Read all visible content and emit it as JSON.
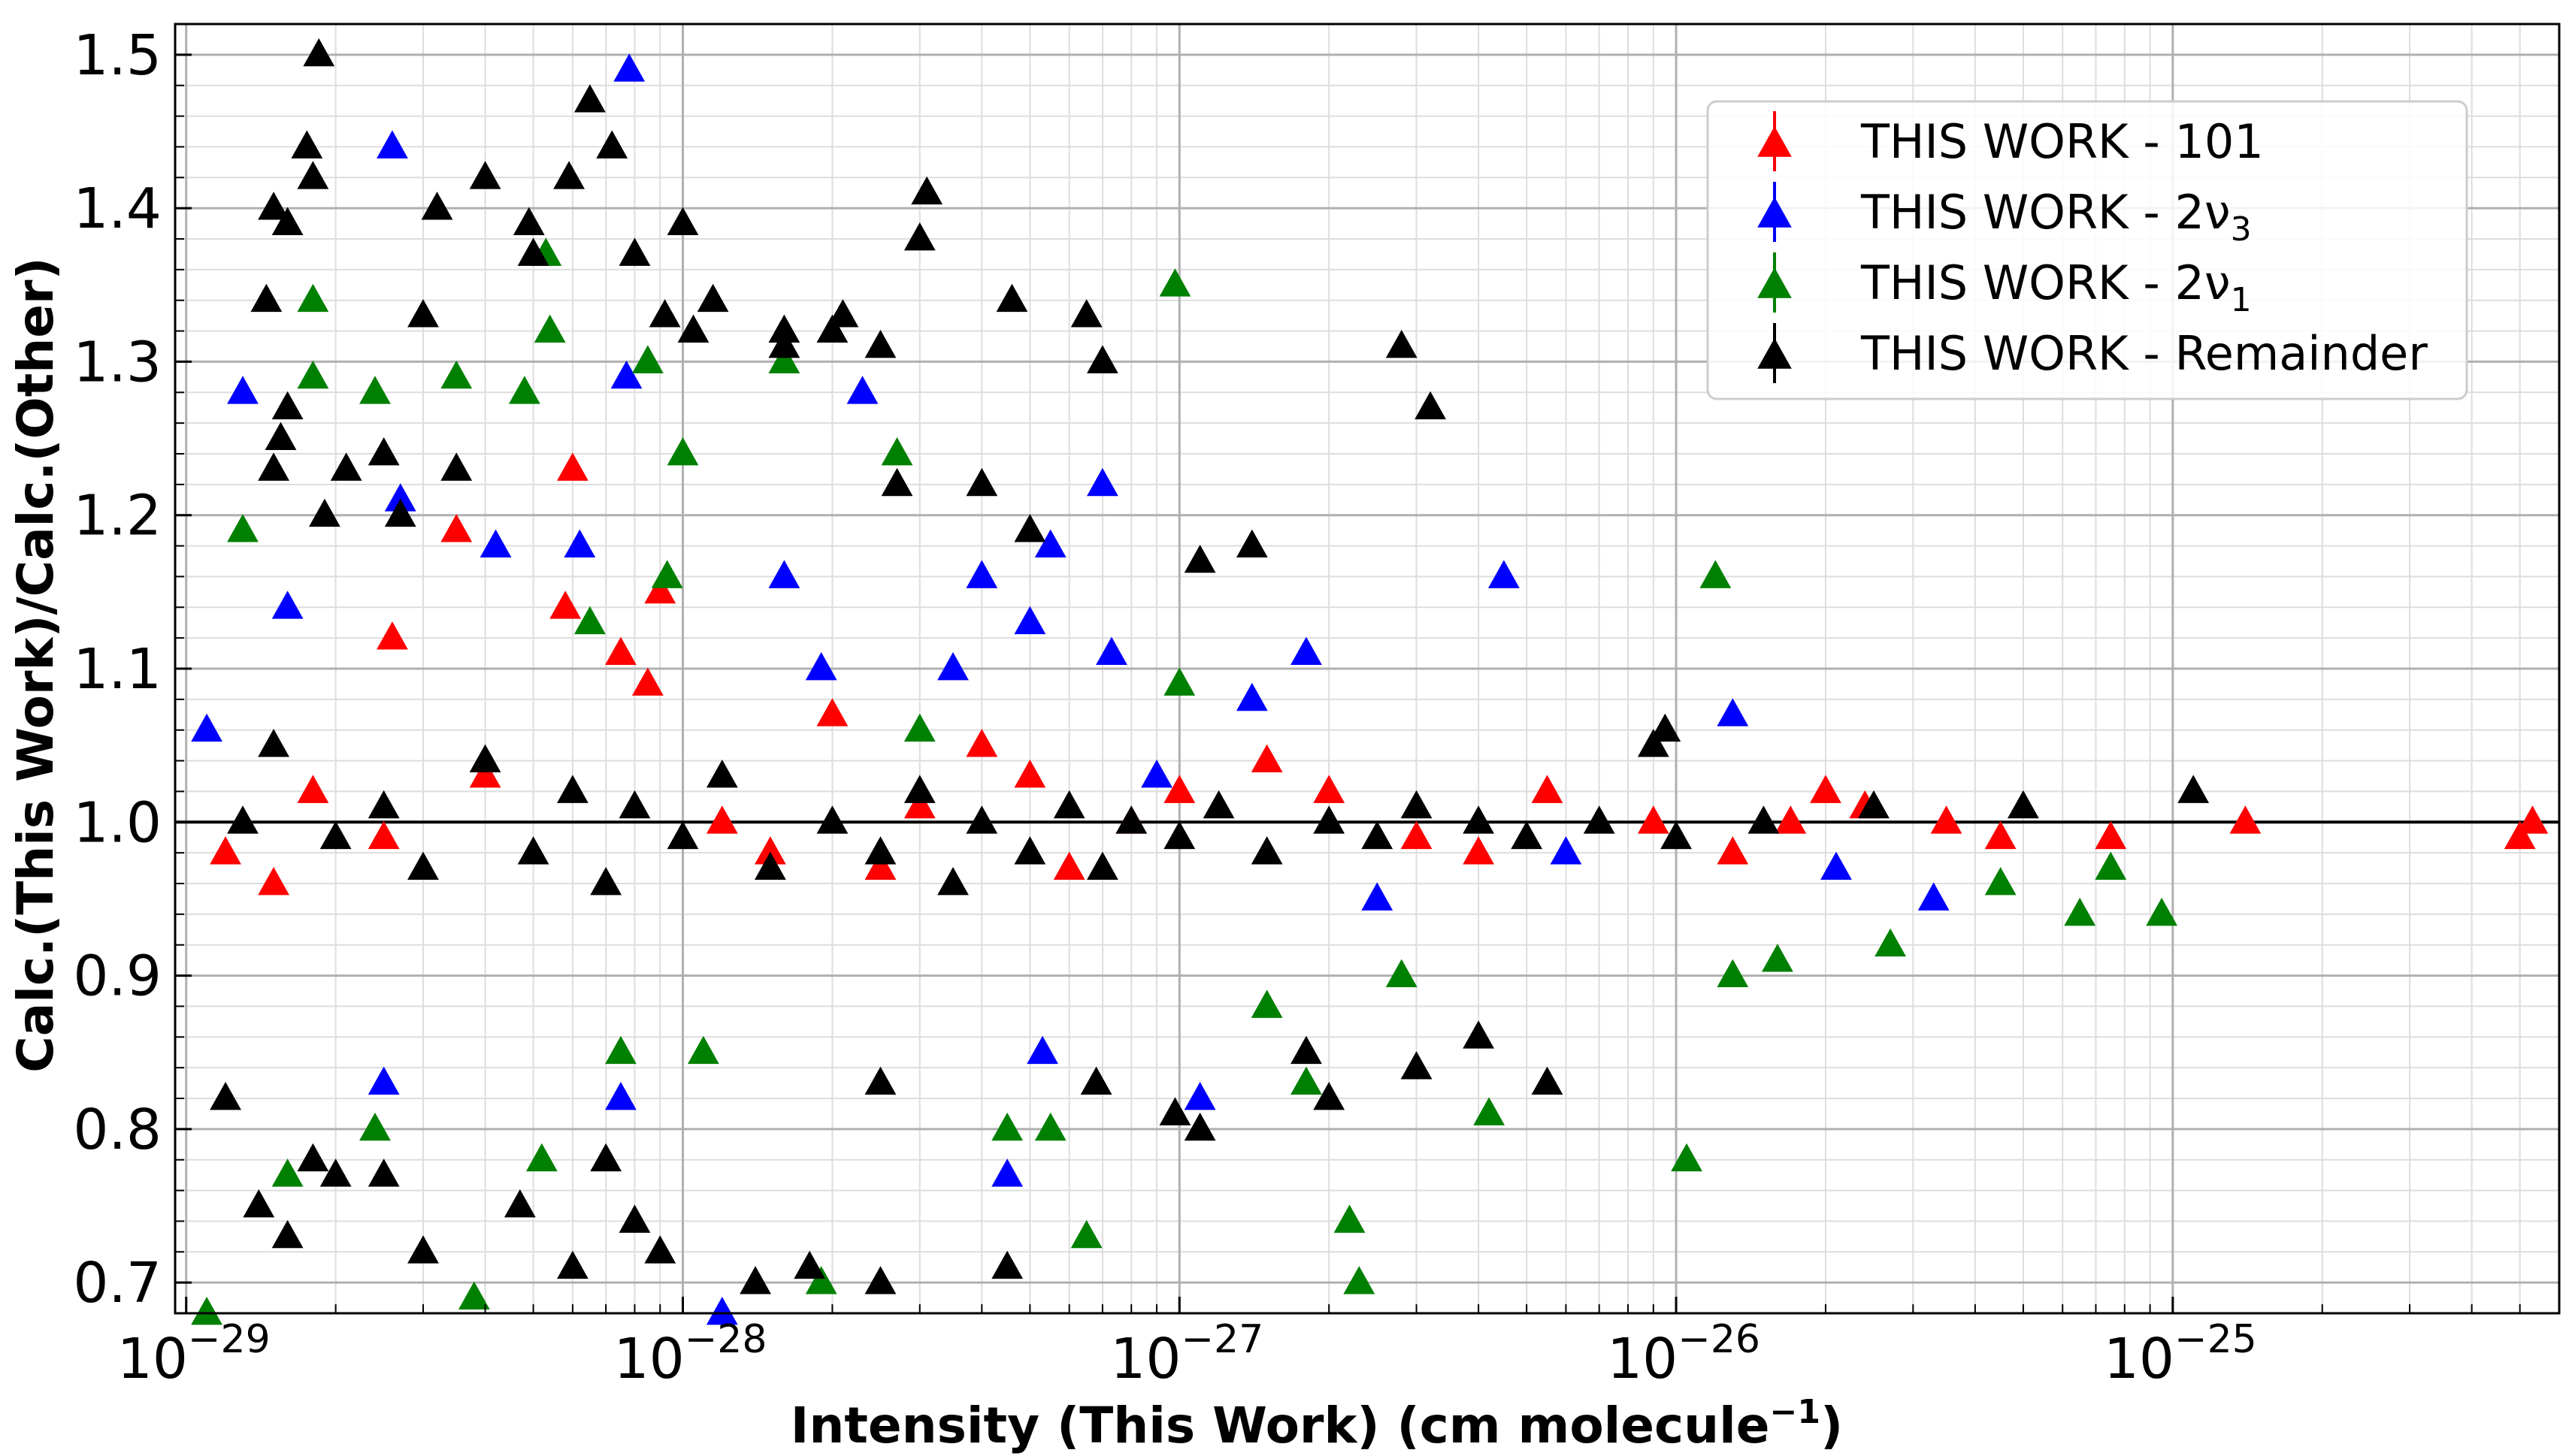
{
  "chart_data": {
    "type": "scatter",
    "title": "",
    "xlabel": "Intensity (This Work) (cm molecule",
    "xlabel_sup": "−1",
    "xlabel_end": ")",
    "ylabel": "Calc.(This Work)/Calc.(Other)",
    "xscale": "log",
    "xlim": [
      9.5e-30,
      6e-25
    ],
    "ylim": [
      0.68,
      1.52
    ],
    "x_ticks": [
      {
        "value": 1e-29,
        "base": "10",
        "exp": "−29"
      },
      {
        "value": 1e-28,
        "base": "10",
        "exp": "−28"
      },
      {
        "value": 1e-27,
        "base": "10",
        "exp": "−27"
      },
      {
        "value": 1e-26,
        "base": "10",
        "exp": "−26"
      },
      {
        "value": 1e-25,
        "base": "10",
        "exp": "−25"
      }
    ],
    "y_ticks": [
      "0.7",
      "0.8",
      "0.9",
      "1.0",
      "1.1",
      "1.2",
      "1.3",
      "1.4",
      "1.5"
    ],
    "grid": true,
    "reference_line": 1.0,
    "marker": "triangle",
    "legend_position": "top-right",
    "series": [
      {
        "name": "THIS WORK - 101",
        "color": "#ff0000",
        "points": [
          [
            1.2e-29,
            0.98
          ],
          [
            1.5e-29,
            0.96
          ],
          [
            1.8e-29,
            1.02
          ],
          [
            2.5e-29,
            0.99
          ],
          [
            2.6e-29,
            1.12
          ],
          [
            3.5e-29,
            1.19
          ],
          [
            4e-29,
            1.03
          ],
          [
            6e-29,
            1.23
          ],
          [
            5.8e-29,
            1.14
          ],
          [
            7.5e-29,
            1.11
          ],
          [
            9e-29,
            1.15
          ],
          [
            8.5e-29,
            1.09
          ],
          [
            1.2e-28,
            1.0
          ],
          [
            1.5e-28,
            0.98
          ],
          [
            2e-28,
            1.07
          ],
          [
            2.5e-28,
            0.97
          ],
          [
            3e-28,
            1.01
          ],
          [
            4e-28,
            1.05
          ],
          [
            5e-28,
            1.03
          ],
          [
            6e-28,
            0.97
          ],
          [
            8e-28,
            1.0
          ],
          [
            1e-27,
            1.02
          ],
          [
            1.5e-27,
            1.04
          ],
          [
            2e-27,
            1.02
          ],
          [
            3e-27,
            0.99
          ],
          [
            4e-27,
            0.98
          ],
          [
            5.5e-27,
            1.02
          ],
          [
            9e-27,
            1.0
          ],
          [
            1.3e-26,
            0.98
          ],
          [
            1.7e-26,
            1.0
          ],
          [
            2e-26,
            1.02
          ],
          [
            2.4e-26,
            1.01
          ],
          [
            3.5e-26,
            1.0
          ],
          [
            4.5e-26,
            0.99
          ],
          [
            7.5e-26,
            0.99
          ],
          [
            1.4e-25,
            1.0
          ],
          [
            5e-25,
            0.99
          ],
          [
            5.3e-25,
            1.0
          ]
        ]
      },
      {
        "name": "THIS WORK - 2ν",
        "name_sub": "3",
        "color": "#0000ff",
        "points": [
          [
            1.1e-29,
            1.06
          ],
          [
            1.3e-29,
            1.28
          ],
          [
            1.6e-29,
            1.14
          ],
          [
            2.6e-29,
            1.44
          ],
          [
            2.7e-29,
            1.21
          ],
          [
            2.5e-29,
            0.83
          ],
          [
            4.2e-29,
            1.18
          ],
          [
            6.2e-29,
            1.18
          ],
          [
            7.7e-29,
            1.29
          ],
          [
            7.8e-29,
            1.49
          ],
          [
            7.5e-29,
            0.82
          ],
          [
            1.2e-28,
            0.68
          ],
          [
            1.6e-28,
            1.16
          ],
          [
            1.9e-28,
            1.1
          ],
          [
            2.3e-28,
            1.28
          ],
          [
            3.5e-28,
            1.1
          ],
          [
            4e-28,
            1.16
          ],
          [
            4.5e-28,
            0.77
          ],
          [
            5e-28,
            1.13
          ],
          [
            5.5e-28,
            1.18
          ],
          [
            5.3e-28,
            0.85
          ],
          [
            7e-28,
            1.22
          ],
          [
            7.3e-28,
            1.11
          ],
          [
            9e-28,
            1.03
          ],
          [
            1.1e-27,
            0.82
          ],
          [
            1.4e-27,
            1.08
          ],
          [
            1.8e-27,
            1.11
          ],
          [
            2.5e-27,
            0.95
          ],
          [
            4.5e-27,
            1.16
          ],
          [
            6e-27,
            0.98
          ],
          [
            1.3e-26,
            1.07
          ],
          [
            2.1e-26,
            0.97
          ],
          [
            3.3e-26,
            0.95
          ]
        ]
      },
      {
        "name": "THIS WORK - 2ν",
        "name_sub": "1",
        "color": "#008000",
        "points": [
          [
            1.1e-29,
            0.68
          ],
          [
            1.3e-29,
            1.19
          ],
          [
            1.6e-29,
            0.77
          ],
          [
            1.8e-29,
            1.34
          ],
          [
            1.8e-29,
            1.29
          ],
          [
            2.4e-29,
            1.28
          ],
          [
            2.4e-29,
            0.8
          ],
          [
            3.5e-29,
            1.29
          ],
          [
            3.8e-29,
            0.69
          ],
          [
            4.8e-29,
            1.28
          ],
          [
            5.3e-29,
            1.37
          ],
          [
            5.4e-29,
            1.32
          ],
          [
            5.2e-29,
            0.78
          ],
          [
            6.5e-29,
            1.13
          ],
          [
            7.5e-29,
            0.85
          ],
          [
            8.5e-29,
            1.3
          ],
          [
            9.3e-29,
            1.16
          ],
          [
            1e-28,
            1.24
          ],
          [
            1.1e-28,
            0.85
          ],
          [
            1.6e-28,
            1.3
          ],
          [
            1.9e-28,
            0.7
          ],
          [
            2.7e-28,
            1.24
          ],
          [
            3e-28,
            1.06
          ],
          [
            4.5e-28,
            0.8
          ],
          [
            5.5e-28,
            0.8
          ],
          [
            6.5e-28,
            0.73
          ],
          [
            9.8e-28,
            1.35
          ],
          [
            1e-27,
            1.09
          ],
          [
            1.5e-27,
            0.88
          ],
          [
            1.8e-27,
            0.83
          ],
          [
            2.2e-27,
            0.74
          ],
          [
            2.3e-27,
            0.7
          ],
          [
            2.8e-27,
            0.9
          ],
          [
            4.2e-27,
            0.81
          ],
          [
            1.2e-26,
            1.16
          ],
          [
            1.05e-26,
            0.78
          ],
          [
            1.3e-26,
            0.9
          ],
          [
            1.6e-26,
            0.91
          ],
          [
            2.7e-26,
            0.92
          ],
          [
            4.5e-26,
            0.96
          ],
          [
            6.5e-26,
            0.94
          ],
          [
            7.5e-26,
            0.97
          ],
          [
            9.5e-26,
            0.94
          ]
        ]
      },
      {
        "name": "THIS WORK - Remainder",
        "color": "#000000",
        "points": [
          [
            1.85e-29,
            1.5
          ],
          [
            1.75e-29,
            1.44
          ],
          [
            1.8e-29,
            1.42
          ],
          [
            1.5e-29,
            1.4
          ],
          [
            1.45e-29,
            1.34
          ],
          [
            1.6e-29,
            1.39
          ],
          [
            1.6e-29,
            1.27
          ],
          [
            1.55e-29,
            1.25
          ],
          [
            1.5e-29,
            1.23
          ],
          [
            1.9e-29,
            1.2
          ],
          [
            2.1e-29,
            1.23
          ],
          [
            2.5e-29,
            1.24
          ],
          [
            2.7e-29,
            1.2
          ],
          [
            3e-29,
            1.33
          ],
          [
            3.2e-29,
            1.4
          ],
          [
            3.5e-29,
            1.23
          ],
          [
            4e-29,
            1.42
          ],
          [
            4.9e-29,
            1.39
          ],
          [
            5e-29,
            1.37
          ],
          [
            5.9e-29,
            1.42
          ],
          [
            6.5e-29,
            1.47
          ],
          [
            7.2e-29,
            1.44
          ],
          [
            8e-29,
            1.37
          ],
          [
            9.2e-29,
            1.33
          ],
          [
            1e-28,
            1.39
          ],
          [
            1.05e-28,
            1.32
          ],
          [
            1.15e-28,
            1.34
          ],
          [
            1.6e-28,
            1.31
          ],
          [
            1.6e-28,
            1.32
          ],
          [
            2e-28,
            1.32
          ],
          [
            2.1e-28,
            1.33
          ],
          [
            2.5e-28,
            1.31
          ],
          [
            2.7e-28,
            1.22
          ],
          [
            3e-28,
            1.38
          ],
          [
            3.1e-28,
            1.41
          ],
          [
            4e-28,
            1.22
          ],
          [
            4.6e-28,
            1.34
          ],
          [
            5e-28,
            1.19
          ],
          [
            6.5e-28,
            1.33
          ],
          [
            7e-28,
            1.3
          ],
          [
            1.1e-27,
            1.17
          ],
          [
            1.4e-27,
            1.18
          ],
          [
            2.8e-27,
            1.31
          ],
          [
            3.2e-27,
            1.27
          ],
          [
            1.2e-29,
            0.82
          ],
          [
            1.4e-29,
            0.75
          ],
          [
            1.6e-29,
            0.73
          ],
          [
            1.8e-29,
            0.78
          ],
          [
            2e-29,
            0.77
          ],
          [
            2.5e-29,
            0.77
          ],
          [
            3e-29,
            0.72
          ],
          [
            4.7e-29,
            0.75
          ],
          [
            6e-29,
            0.71
          ],
          [
            7e-29,
            0.78
          ],
          [
            8e-29,
            0.74
          ],
          [
            9e-29,
            0.72
          ],
          [
            1.4e-28,
            0.7
          ],
          [
            1.8e-28,
            0.71
          ],
          [
            2.5e-28,
            0.7
          ],
          [
            2.5e-28,
            0.83
          ],
          [
            4.5e-28,
            0.71
          ],
          [
            6.8e-28,
            0.83
          ],
          [
            9.8e-28,
            0.81
          ],
          [
            1.1e-27,
            0.8
          ],
          [
            1.8e-27,
            0.85
          ],
          [
            2e-27,
            0.82
          ],
          [
            3e-27,
            0.84
          ],
          [
            4e-27,
            0.86
          ],
          [
            5.5e-27,
            0.83
          ],
          [
            9e-27,
            1.05
          ],
          [
            9.5e-27,
            1.06
          ],
          [
            1.1e-25,
            1.02
          ],
          [
            5e-26,
            1.01
          ],
          [
            1.3e-29,
            1.0
          ],
          [
            1.5e-29,
            1.05
          ],
          [
            2e-29,
            0.99
          ],
          [
            2.5e-29,
            1.01
          ],
          [
            3e-29,
            0.97
          ],
          [
            4e-29,
            1.04
          ],
          [
            5e-29,
            0.98
          ],
          [
            6e-29,
            1.02
          ],
          [
            7e-29,
            0.96
          ],
          [
            8e-29,
            1.01
          ],
          [
            1e-28,
            0.99
          ],
          [
            1.2e-28,
            1.03
          ],
          [
            1.5e-28,
            0.97
          ],
          [
            2e-28,
            1.0
          ],
          [
            2.5e-28,
            0.98
          ],
          [
            3e-28,
            1.02
          ],
          [
            3.5e-28,
            0.96
          ],
          [
            4e-28,
            1.0
          ],
          [
            5e-28,
            0.98
          ],
          [
            6e-28,
            1.01
          ],
          [
            7e-28,
            0.97
          ],
          [
            8e-28,
            1.0
          ],
          [
            1e-27,
            0.99
          ],
          [
            1.2e-27,
            1.01
          ],
          [
            1.5e-27,
            0.98
          ],
          [
            2e-27,
            1.0
          ],
          [
            2.5e-27,
            0.99
          ],
          [
            3e-27,
            1.01
          ],
          [
            4e-27,
            1.0
          ],
          [
            5e-27,
            0.99
          ],
          [
            7e-27,
            1.0
          ],
          [
            1e-26,
            0.99
          ],
          [
            1.5e-26,
            1.0
          ],
          [
            2.5e-26,
            1.01
          ]
        ]
      }
    ]
  }
}
